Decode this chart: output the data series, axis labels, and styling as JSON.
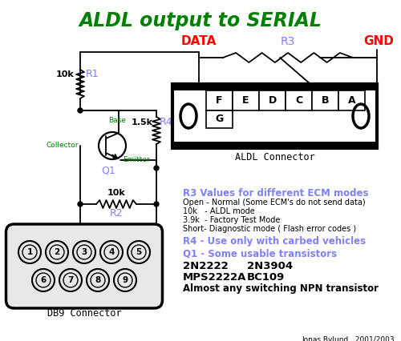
{
  "title": "ALDL output to SERIAL",
  "title_color": "#008000",
  "bg_color": "#ffffff",
  "lc": "#000000",
  "blue_label_color": "#8080ff",
  "green_label_color": "#008000",
  "red_label_color": "#ff0000",
  "r3_values_title": "R3 Values for different ECM modes",
  "r3_line1": "Open - Normal (Some ECM's do not send data)",
  "r3_line2": "10k   - ALDL mode",
  "r3_line3": "3.9k  - Factory Test Mode",
  "r3_line4": "Short- Diagnostic mode ( Flash error codes )",
  "r4_text": "R4 - Use only with carbed vehicles",
  "q1_title": "Q1 - Some usable transistors",
  "t1": "2N2222",
  "t2": "2N3904",
  "t3": "MPS2222A",
  "t4": "BC109",
  "npn_text": "Almost any switching NPN transistor",
  "footer": "Jonas Bylund   2001/2003"
}
